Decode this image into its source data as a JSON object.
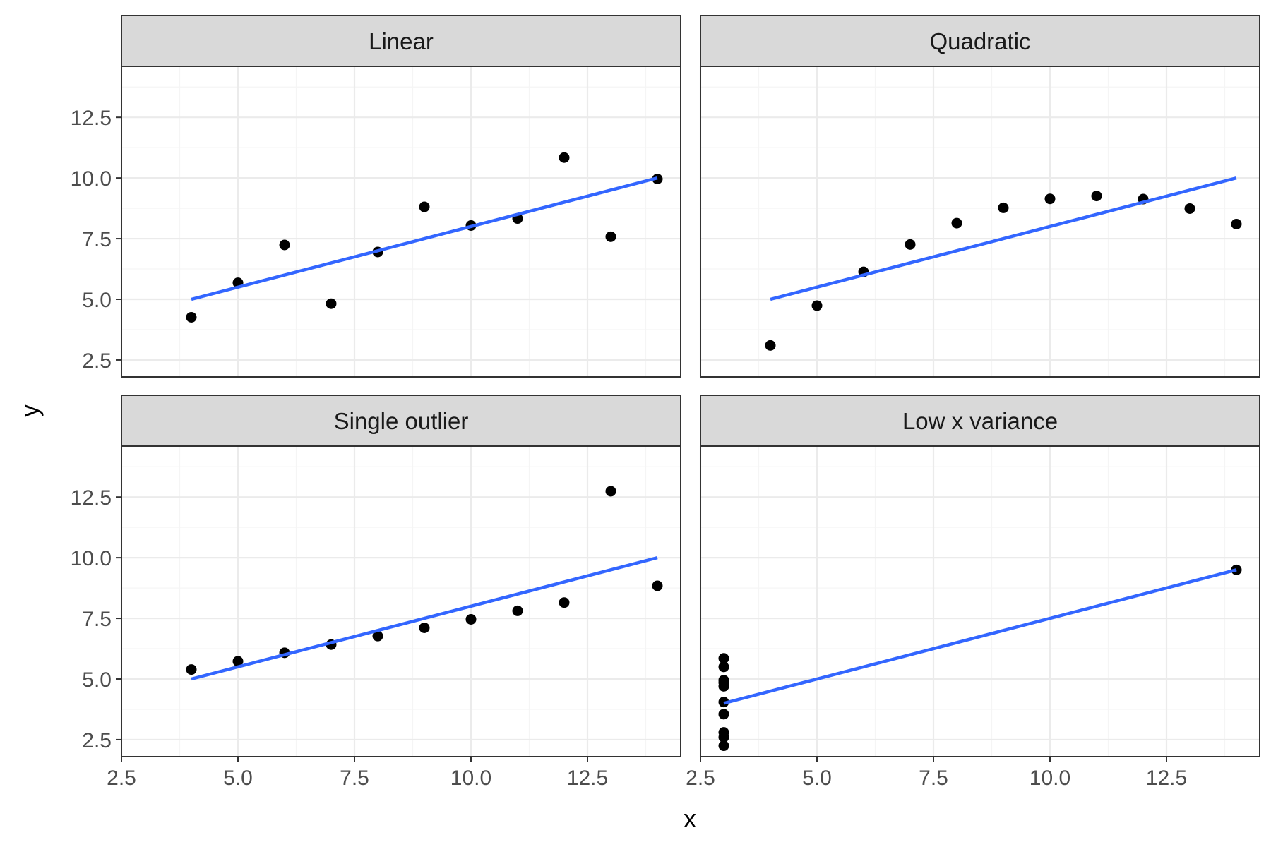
{
  "colors": {
    "background": "#ffffff",
    "panel_border": "#333333",
    "strip_fill": "#d9d9d9",
    "grid_major": "#ebebeb",
    "grid_minor": "#f5f5f5",
    "point": "#000000",
    "fit_line": "#3366ff",
    "tick_text": "#4d4d4d",
    "title_text": "#000000"
  },
  "chart_data": {
    "type": "scatter",
    "layout": "facet-grid 2x2, shared x and y axes",
    "xlabel": "x",
    "ylabel": "y",
    "xlim": [
      2.5,
      14.5
    ],
    "ylim": [
      1.8,
      14.6
    ],
    "x_ticks": [
      2.5,
      5.0,
      7.5,
      10.0,
      12.5
    ],
    "x_tick_labels": [
      "2.5",
      "5.0",
      "7.5",
      "10.0",
      "12.5"
    ],
    "y_ticks": [
      2.5,
      5.0,
      7.5,
      10.0,
      12.5
    ],
    "y_tick_labels": [
      "2.5",
      "5.0",
      "7.5",
      "10.0",
      "12.5"
    ],
    "grid": true,
    "legend": "none",
    "panels": [
      {
        "title": "Linear",
        "points": [
          [
            4,
            4.26
          ],
          [
            5,
            5.68
          ],
          [
            6,
            7.24
          ],
          [
            7,
            4.82
          ],
          [
            8,
            6.95
          ],
          [
            9,
            8.81
          ],
          [
            10,
            8.04
          ],
          [
            11,
            8.33
          ],
          [
            12,
            10.84
          ],
          [
            13,
            7.58
          ],
          [
            14,
            9.96
          ]
        ],
        "fit": [
          [
            4,
            5.0
          ],
          [
            14,
            10.0
          ]
        ]
      },
      {
        "title": "Quadratic",
        "points": [
          [
            4,
            3.1
          ],
          [
            5,
            4.74
          ],
          [
            6,
            6.13
          ],
          [
            7,
            7.26
          ],
          [
            8,
            8.14
          ],
          [
            9,
            8.77
          ],
          [
            10,
            9.14
          ],
          [
            11,
            9.26
          ],
          [
            12,
            9.13
          ],
          [
            13,
            8.74
          ],
          [
            14,
            8.1
          ]
        ],
        "fit": [
          [
            4,
            5.0
          ],
          [
            14,
            10.0
          ]
        ]
      },
      {
        "title": "Single outlier",
        "points": [
          [
            4,
            5.39
          ],
          [
            5,
            5.73
          ],
          [
            6,
            6.08
          ],
          [
            7,
            6.42
          ],
          [
            8,
            6.77
          ],
          [
            9,
            7.11
          ],
          [
            10,
            7.46
          ],
          [
            11,
            7.81
          ],
          [
            12,
            8.15
          ],
          [
            13,
            12.74
          ],
          [
            14,
            8.84
          ]
        ],
        "fit": [
          [
            4,
            5.0
          ],
          [
            14,
            10.0
          ]
        ]
      },
      {
        "title": "Low x variance",
        "points": [
          [
            3,
            5.85
          ],
          [
            3,
            5.5
          ],
          [
            3,
            4.95
          ],
          [
            3,
            4.85
          ],
          [
            3,
            4.7
          ],
          [
            3,
            4.05
          ],
          [
            3,
            3.55
          ],
          [
            3,
            2.8
          ],
          [
            3,
            2.6
          ],
          [
            3,
            2.25
          ],
          [
            14,
            9.5
          ]
        ],
        "fit": [
          [
            3,
            4.0
          ],
          [
            14,
            9.5
          ]
        ]
      }
    ]
  }
}
